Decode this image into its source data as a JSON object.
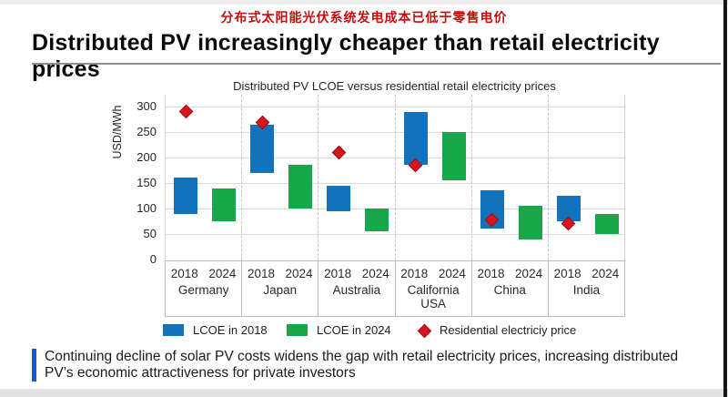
{
  "header": {
    "cn_title": "分布式太阳能光伏系统发电成本已低于零售电价",
    "en_title": "Distributed PV increasingly cheaper than retail electricity prices"
  },
  "colors": {
    "cn_title_red": "#c90a0a",
    "lcoe_2018_blue": "#1273bc",
    "lcoe_2024_green": "#17a64a",
    "retail_price_red": "#d8141e",
    "takeaway_accent_blue": "#1557d6",
    "right_edge_strip": "#161616"
  },
  "chart_data": {
    "type": "bar",
    "subtype": "floating-range-bars-with-point-markers",
    "title": "Distributed PV LCOE versus residential retail electricity prices",
    "xlabel": "",
    "ylabel": "USD/MWh",
    "ylim": [
      0,
      300
    ],
    "yticks": [
      0,
      50,
      100,
      150,
      200,
      250,
      300
    ],
    "grid": true,
    "legend_position": "bottom",
    "categories": [
      "Germany",
      "Japan",
      "Australia",
      "California USA",
      "China",
      "India"
    ],
    "category_label_lines": [
      [
        "Germany"
      ],
      [
        "Japan"
      ],
      [
        "Australia"
      ],
      [
        "California",
        "USA"
      ],
      [
        "China"
      ],
      [
        "India"
      ]
    ],
    "sub_categories": [
      "2018",
      "2024"
    ],
    "series": [
      {
        "name": "LCOE in 2018",
        "type": "range",
        "color": "#1273bc",
        "ranges": [
          [
            90,
            160
          ],
          [
            170,
            265
          ],
          [
            95,
            145
          ],
          [
            185,
            290
          ],
          [
            60,
            135
          ],
          [
            75,
            125
          ]
        ]
      },
      {
        "name": "LCOE in 2024",
        "type": "range",
        "color": "#17a64a",
        "ranges": [
          [
            75,
            140
          ],
          [
            100,
            185
          ],
          [
            55,
            100
          ],
          [
            155,
            250
          ],
          [
            40,
            105
          ],
          [
            50,
            90
          ]
        ]
      },
      {
        "name": "Residential electriciy price",
        "type": "point",
        "color": "#d8141e",
        "values": [
          290,
          268,
          210,
          185,
          78,
          70
        ]
      }
    ]
  },
  "takeaway": {
    "text": "Continuing decline of solar PV costs widens the gap with retail electricity prices, increasing distributed PV’s economic attractiveness for private investors"
  }
}
